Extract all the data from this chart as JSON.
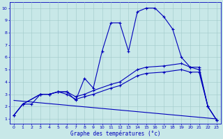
{
  "xlabel": "Graphe des températures (°c)",
  "xlim_min": -0.5,
  "xlim_max": 23.5,
  "ylim_min": 0.6,
  "ylim_max": 10.5,
  "xticks": [
    0,
    1,
    2,
    3,
    4,
    5,
    6,
    7,
    8,
    9,
    10,
    11,
    12,
    13,
    14,
    15,
    16,
    17,
    18,
    19,
    20,
    21,
    22,
    23
  ],
  "yticks": [
    1,
    2,
    3,
    4,
    5,
    6,
    7,
    8,
    9,
    10
  ],
  "bg_color": "#c8e8e8",
  "grid_color": "#a0c8c8",
  "line_color": "#0000bb",
  "curve1_x": [
    0,
    1,
    2,
    3,
    4,
    5,
    6,
    7,
    8,
    9,
    10,
    11,
    12,
    13,
    14,
    15,
    16,
    17,
    18,
    19,
    20,
    21,
    22,
    23
  ],
  "curve1_y": [
    1.3,
    2.2,
    2.2,
    3.0,
    3.0,
    3.2,
    3.2,
    2.5,
    4.3,
    3.5,
    6.5,
    8.8,
    8.8,
    6.5,
    9.7,
    10.0,
    10.0,
    9.3,
    8.3,
    6.0,
    5.2,
    5.0,
    2.0,
    0.9
  ],
  "curve2_x": [
    0,
    1,
    3,
    4,
    5,
    6,
    7,
    8,
    9,
    11,
    12,
    14,
    15,
    17,
    19,
    20,
    21,
    22,
    23
  ],
  "curve2_y": [
    1.3,
    2.2,
    3.0,
    3.0,
    3.2,
    3.2,
    2.8,
    3.0,
    3.3,
    3.8,
    4.0,
    5.0,
    5.2,
    5.3,
    5.5,
    5.2,
    5.2,
    2.0,
    0.9
  ],
  "curve3_x": [
    0,
    1,
    3,
    4,
    5,
    6,
    7,
    8,
    9,
    11,
    12,
    14,
    15,
    17,
    19,
    20,
    21,
    22,
    23
  ],
  "curve3_y": [
    1.3,
    2.2,
    3.0,
    3.0,
    3.2,
    3.0,
    2.6,
    2.8,
    3.0,
    3.5,
    3.7,
    4.5,
    4.7,
    4.8,
    5.0,
    4.8,
    4.8,
    2.0,
    0.9
  ],
  "line4_x": [
    0,
    23
  ],
  "line4_y": [
    2.5,
    1.0
  ],
  "marker": "+"
}
